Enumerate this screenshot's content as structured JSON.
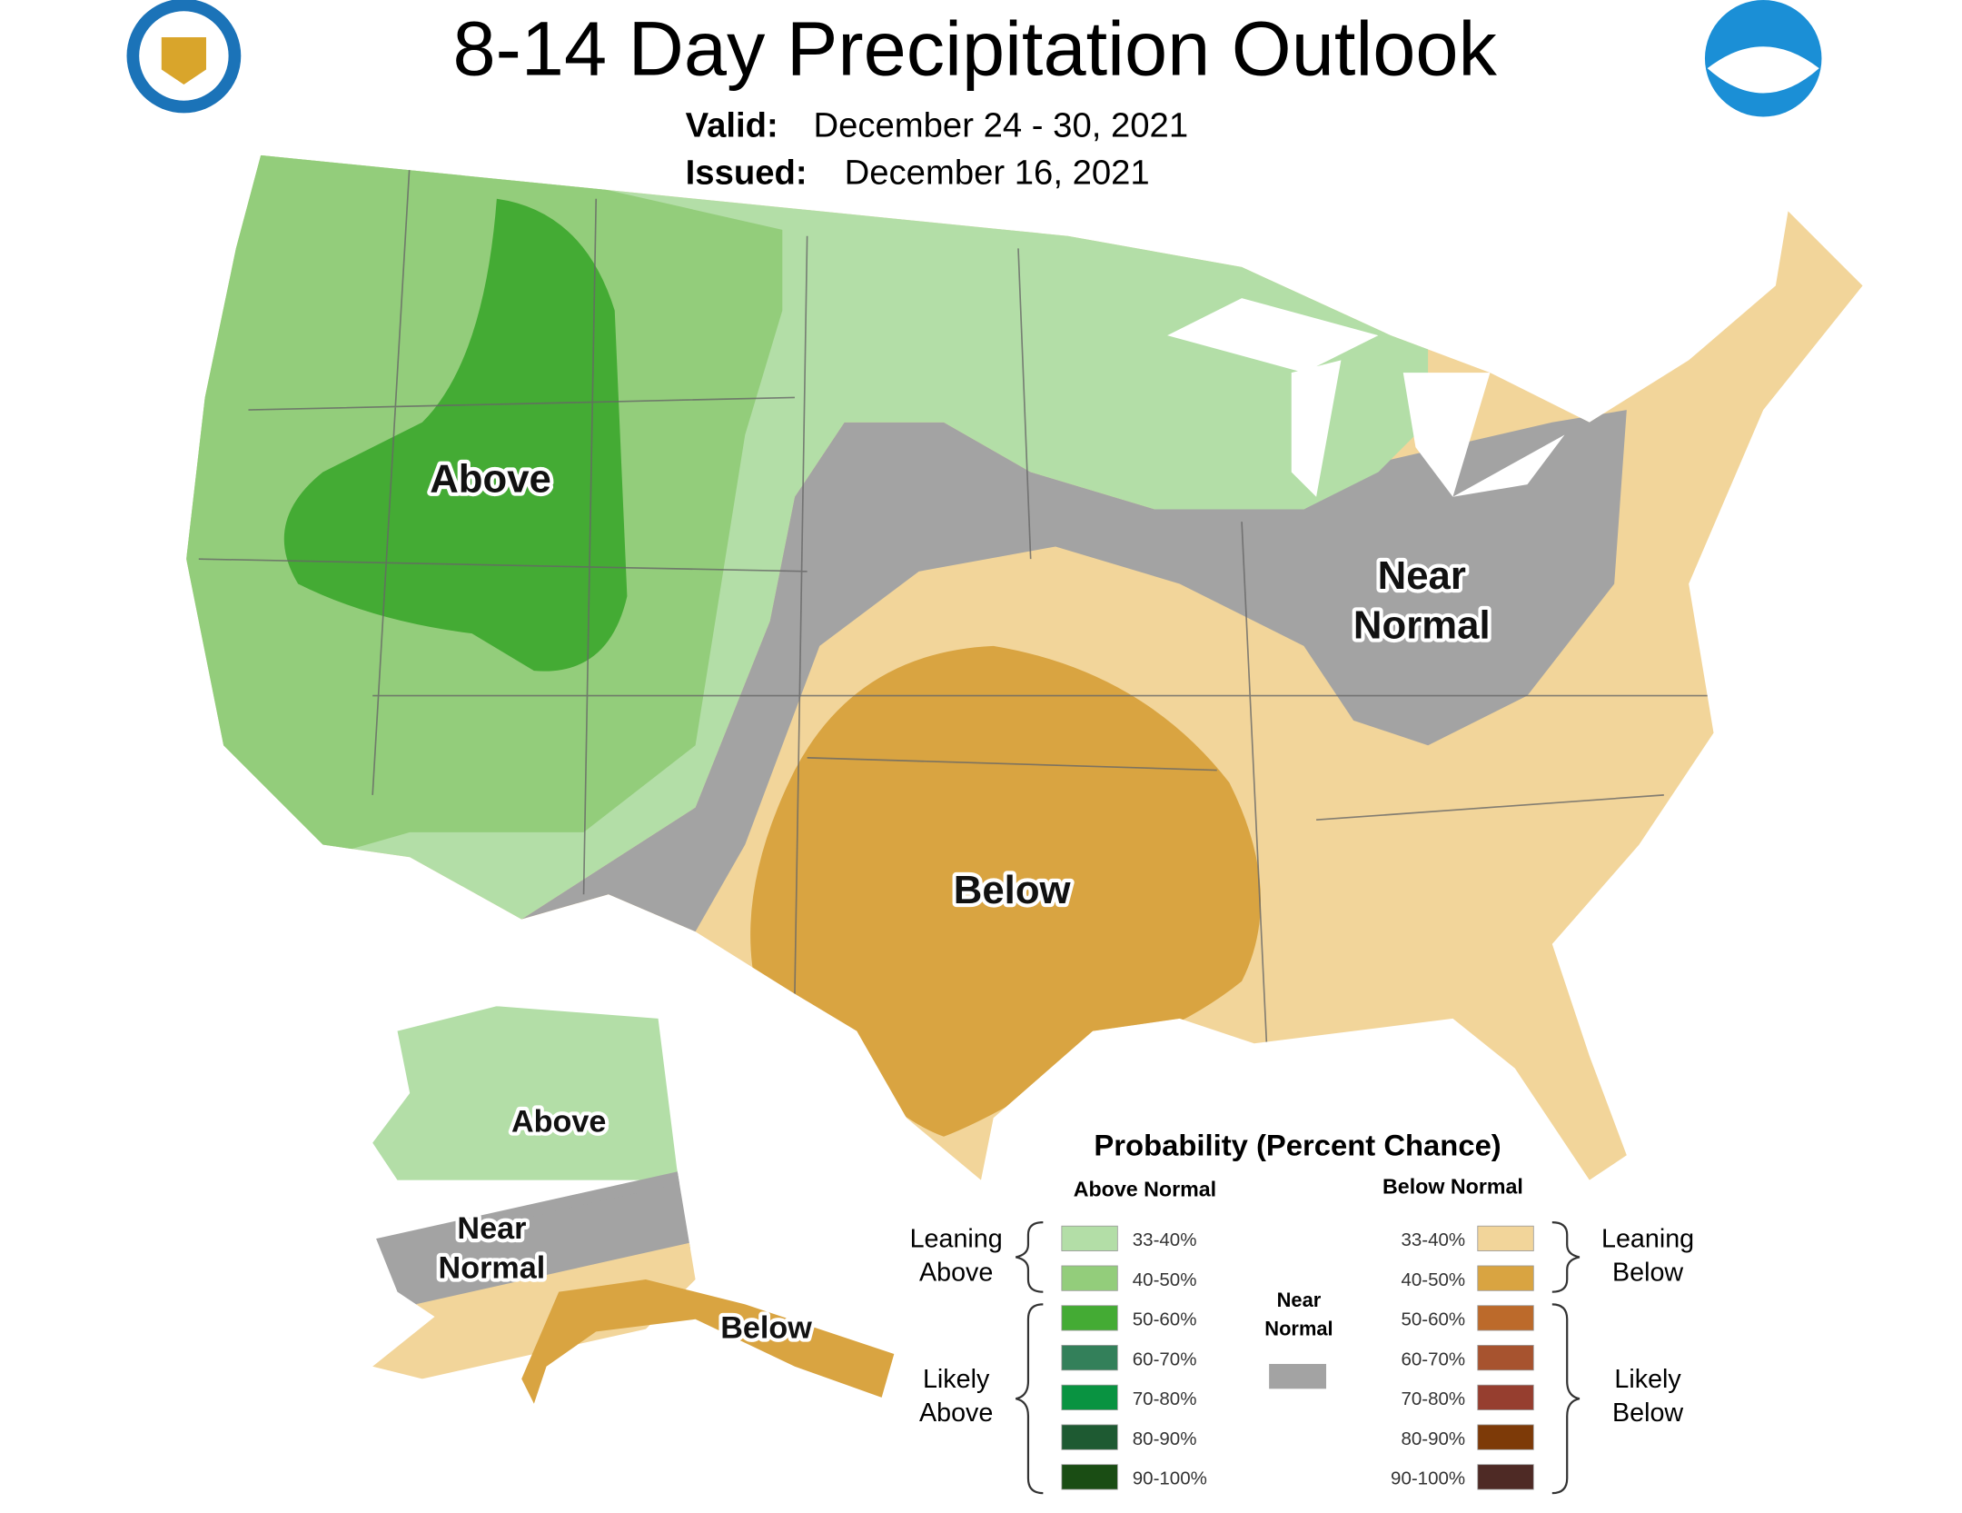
{
  "title": "8-14 Day Precipitation Outlook",
  "valid": {
    "label": "Valid:",
    "value": "December 24 - 30, 2021"
  },
  "issued": {
    "label": "Issued:",
    "value": "December 16, 2021"
  },
  "map_labels": {
    "conus": [
      {
        "lines": [
          "Above"
        ]
      },
      {
        "lines": [
          "Near",
          "Normal"
        ]
      },
      {
        "lines": [
          "Below"
        ]
      }
    ],
    "alaska": [
      {
        "lines": [
          "Above"
        ]
      },
      {
        "lines": [
          "Near",
          "Normal"
        ]
      },
      {
        "lines": [
          "Below"
        ]
      }
    ]
  },
  "legend": {
    "title": "Probability (Percent Chance)",
    "above_normal": {
      "heading": "Above Normal",
      "leaning": [
        "Leaning",
        "Above"
      ],
      "likely": [
        "Likely",
        "Above"
      ],
      "items": [
        {
          "label": "33-40%",
          "color": "#b3dea7"
        },
        {
          "label": "40-50%",
          "color": "#93cd7b"
        },
        {
          "label": "50-60%",
          "color": "#44ab34"
        },
        {
          "label": "60-70%",
          "color": "#33805a"
        },
        {
          "label": "70-80%",
          "color": "#099341"
        },
        {
          "label": "80-90%",
          "color": "#1e5a32"
        },
        {
          "label": "90-100%",
          "color": "#1a4d14"
        }
      ]
    },
    "near_normal": {
      "label": [
        "Near",
        "Normal"
      ],
      "color": "#a3a3a3"
    },
    "below_normal": {
      "heading": "Below Normal",
      "leaning": [
        "Leaning",
        "Below"
      ],
      "likely": [
        "Likely",
        "Below"
      ],
      "items": [
        {
          "label": "33-40%",
          "color": "#f2d59a"
        },
        {
          "label": "40-50%",
          "color": "#d9a441"
        },
        {
          "label": "50-60%",
          "color": "#bc6a2b"
        },
        {
          "label": "60-70%",
          "color": "#a7532f"
        },
        {
          "label": "70-80%",
          "color": "#963e2f"
        },
        {
          "label": "80-90%",
          "color": "#7d3a08"
        },
        {
          "label": "90-100%",
          "color": "#4e2a25"
        }
      ]
    }
  }
}
